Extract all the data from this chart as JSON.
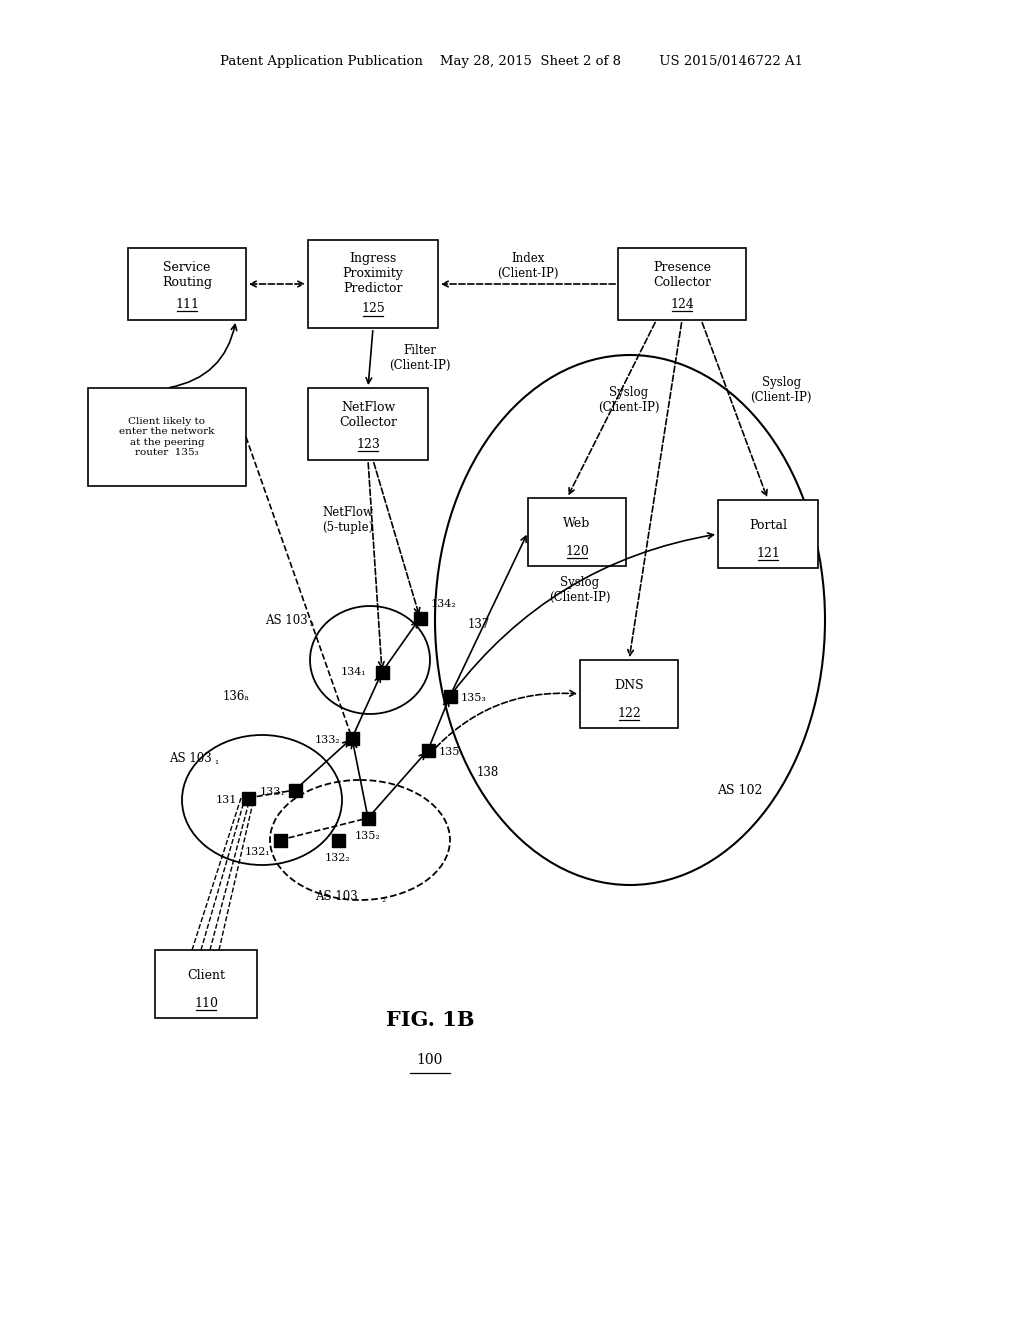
{
  "bg_color": "#ffffff",
  "header_text": "Patent Application Publication    May 28, 2015  Sheet 2 of 8         US 2015/0146722 A1",
  "fig_label": "FIG. 1B",
  "fig_number": "100"
}
